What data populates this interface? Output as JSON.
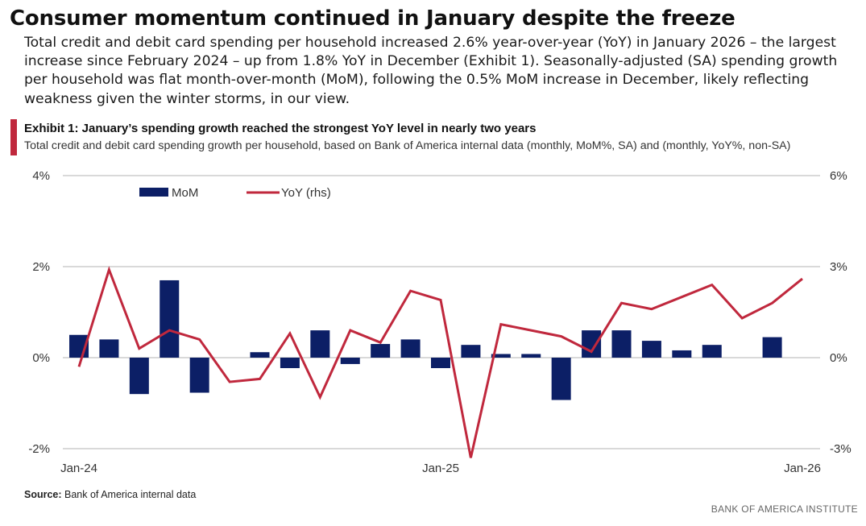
{
  "headline": "Consumer momentum continued in January despite the freeze",
  "body": "Total credit and debit card spending per household increased 2.6% year-over-year (YoY) in January 2026 – the largest increase since February 2024 – up from 1.8% YoY in December (Exhibit 1). Seasonally-adjusted (SA) spending growth per household was flat month-over-month (MoM), following the 0.5% MoM increase in December, likely reflecting weakness given the winter storms, in our view.",
  "exhibit": {
    "title": "Exhibit 1: January’s spending growth reached the strongest YoY level in nearly two years",
    "subtitle": "Total credit and debit card spending growth per household, based on Bank of America internal data (monthly, MoM%, SA) and (monthly, YoY%, non-SA)"
  },
  "source_label": "Source:",
  "source_text": " Bank of America internal data",
  "brand": "BANK OF AMERICA INSTITUTE",
  "colors": {
    "bar": "#0c1f66",
    "line": "#c0283d",
    "grid": "#b3b3b3",
    "accent": "#c0283d"
  },
  "chart_data": {
    "type": "bar+line",
    "categories": [
      "Jan-24",
      "Feb-24",
      "Mar-24",
      "Apr-24",
      "May-24",
      "Jun-24",
      "Jul-24",
      "Aug-24",
      "Sep-24",
      "Oct-24",
      "Nov-24",
      "Dec-24",
      "Jan-25",
      "Feb-25",
      "Mar-25",
      "Apr-25",
      "May-25",
      "Jun-25",
      "Jul-25",
      "Aug-25",
      "Sep-25",
      "Oct-25",
      "Nov-25",
      "Dec-25",
      "Jan-26"
    ],
    "x_tick_labels": [
      {
        "index": 0,
        "label": "Jan-24"
      },
      {
        "index": 12,
        "label": "Jan-25"
      },
      {
        "index": 24,
        "label": "Jan-26"
      }
    ],
    "series": [
      {
        "name": "MoM",
        "type": "bar",
        "axis": "left",
        "values": [
          0.5,
          0.4,
          -0.8,
          1.7,
          -0.77,
          0.0,
          0.12,
          -0.23,
          0.6,
          -0.14,
          0.3,
          0.4,
          -0.23,
          0.28,
          0.08,
          0.08,
          -0.93,
          0.6,
          0.6,
          0.37,
          0.16,
          0.28,
          0.0,
          0.45,
          0.0
        ]
      },
      {
        "name": "YoY (rhs)",
        "type": "line",
        "axis": "right",
        "values": [
          -0.3,
          2.9,
          0.3,
          0.9,
          0.6,
          -0.8,
          -0.7,
          0.8,
          -1.3,
          0.9,
          0.5,
          2.2,
          1.9,
          -3.3,
          1.1,
          0.9,
          0.7,
          0.2,
          1.8,
          1.6,
          2.0,
          2.4,
          1.3,
          1.8,
          2.6
        ]
      }
    ],
    "left_axis": {
      "min": -2,
      "max": 4,
      "ticks": [
        "-2%",
        "0%",
        "2%",
        "4%"
      ],
      "tick_values": [
        -2,
        0,
        2,
        4
      ]
    },
    "right_axis": {
      "min": -3,
      "max": 6,
      "ticks": [
        "-3%",
        "0%",
        "3%",
        "6%"
      ],
      "tick_values": [
        -3,
        0,
        3,
        6
      ]
    },
    "legend": [
      {
        "label": "MoM",
        "kind": "bar"
      },
      {
        "label": "YoY (rhs)",
        "kind": "line"
      }
    ],
    "legend_position": "top-left",
    "grid": true
  }
}
